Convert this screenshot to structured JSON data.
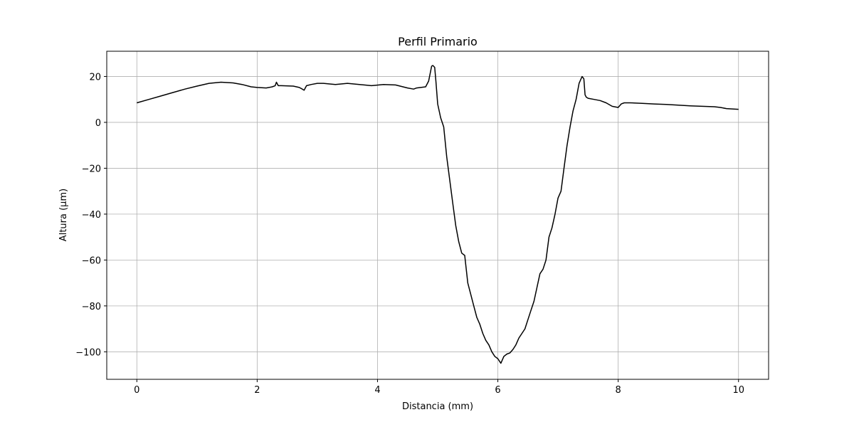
{
  "chart_data": {
    "type": "line",
    "title": "Perfil Primario",
    "xlabel": "Distancia (mm)",
    "ylabel": "Altura (µm)",
    "xlim": [
      -0.5,
      10.5
    ],
    "ylim": [
      -112,
      31
    ],
    "xticks": [
      0,
      2,
      4,
      6,
      8,
      10
    ],
    "yticks": [
      -100,
      -80,
      -60,
      -40,
      -20,
      0,
      20
    ],
    "grid": true,
    "line_color": "#000000",
    "series": [
      {
        "x": [
          0,
          0.2,
          0.4,
          0.6,
          0.8,
          1.0,
          1.2,
          1.4,
          1.6,
          1.75,
          1.9,
          2.0,
          2.15,
          2.25,
          2.3,
          2.32,
          2.35,
          2.4,
          2.6,
          2.7,
          2.75,
          2.78,
          2.82,
          2.9,
          3.0,
          3.1,
          3.3,
          3.5,
          3.7,
          3.9,
          4.1,
          4.3,
          4.5,
          4.6,
          4.65,
          4.8,
          4.85,
          4.88,
          4.9,
          4.92,
          4.95,
          4.97,
          5.0,
          5.05,
          5.1,
          5.15,
          5.2,
          5.25,
          5.3,
          5.35,
          5.4,
          5.45,
          5.5,
          5.55,
          5.6,
          5.65,
          5.7,
          5.75,
          5.8,
          5.85,
          5.9,
          5.95,
          6.0,
          6.05,
          6.1,
          6.15,
          6.2,
          6.25,
          6.3,
          6.35,
          6.4,
          6.45,
          6.5,
          6.55,
          6.6,
          6.65,
          6.7,
          6.75,
          6.8,
          6.85,
          6.9,
          6.95,
          7.0,
          7.05,
          7.1,
          7.15,
          7.2,
          7.25,
          7.3,
          7.35,
          7.4,
          7.43,
          7.45,
          7.47,
          7.5,
          7.6,
          7.7,
          7.8,
          7.9,
          8.0,
          8.05,
          8.1,
          8.2,
          8.4,
          8.6,
          8.8,
          9.0,
          9.2,
          9.4,
          9.6,
          9.7,
          9.8,
          10.0
        ],
        "y": [
          8.5,
          10,
          11.5,
          13,
          14.5,
          15.8,
          17,
          17.5,
          17.2,
          16.5,
          15.5,
          15.2,
          15,
          15.5,
          16,
          17.5,
          16,
          16,
          15.8,
          15.2,
          14.5,
          14,
          16,
          16.5,
          17,
          17,
          16.5,
          17,
          16.5,
          16,
          16.5,
          16.3,
          15,
          14.5,
          15,
          15.5,
          18,
          22,
          24.5,
          24.8,
          24,
          18,
          8,
          2,
          -2,
          -15,
          -25,
          -35,
          -45,
          -52,
          -57,
          -58,
          -70,
          -75,
          -80,
          -85,
          -88,
          -92,
          -95,
          -97,
          -100,
          -102,
          -103,
          -105,
          -102,
          -101,
          -100.5,
          -99,
          -97,
          -94,
          -92,
          -90,
          -86,
          -82,
          -78,
          -72,
          -66,
          -64,
          -60,
          -50,
          -46,
          -40,
          -33,
          -30,
          -20,
          -10,
          -2,
          5,
          10,
          17,
          20,
          19,
          12,
          11,
          10.5,
          10,
          9.5,
          8.5,
          7,
          6.5,
          8,
          8.5,
          8.5,
          8.3,
          8,
          7.8,
          7.5,
          7.2,
          7,
          6.8,
          6.5,
          6,
          5.7
        ]
      }
    ]
  }
}
